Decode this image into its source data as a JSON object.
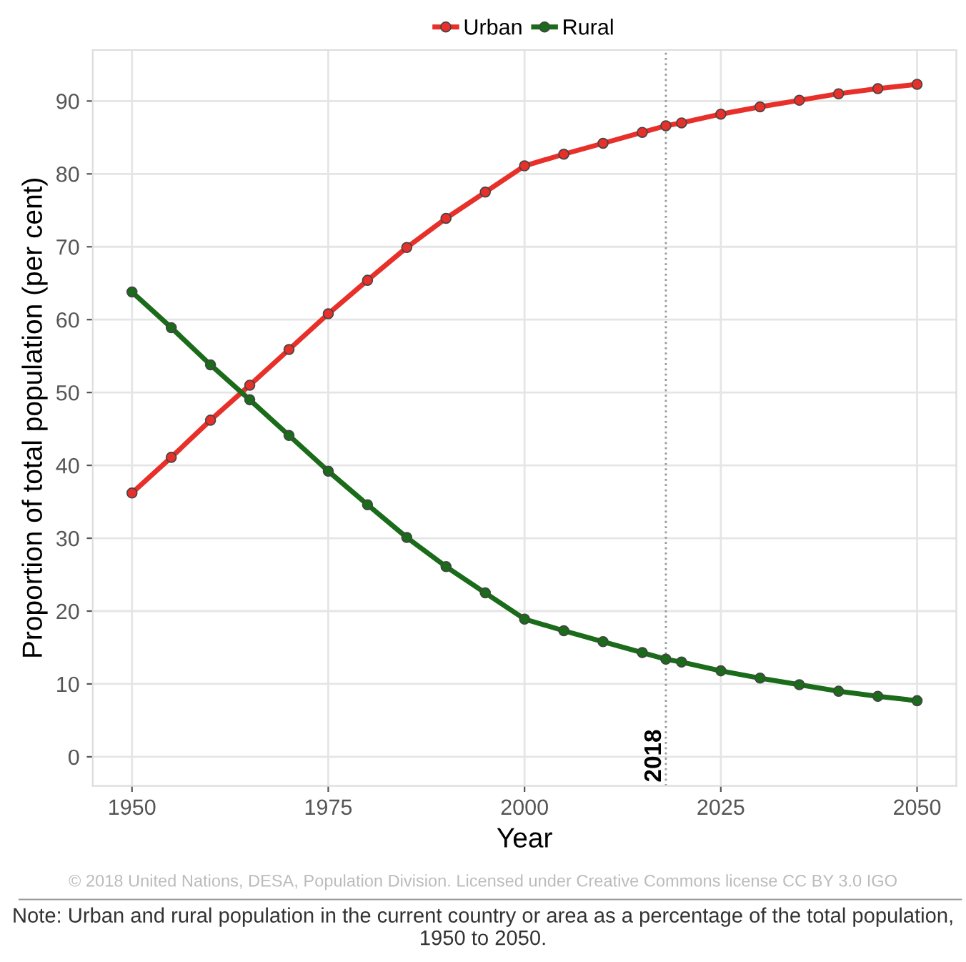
{
  "chart_data": {
    "type": "line",
    "xlabel": "Year",
    "ylabel": "Proportion of total population (per cent)",
    "x": [
      1950,
      1955,
      1960,
      1965,
      1970,
      1975,
      1980,
      1985,
      1990,
      1995,
      2000,
      2005,
      2010,
      2015,
      2018,
      2020,
      2025,
      2030,
      2035,
      2040,
      2045,
      2050
    ],
    "series": [
      {
        "name": "Urban",
        "color": "#e8302a",
        "values": [
          36.2,
          41.1,
          46.2,
          51.0,
          55.9,
          60.8,
          65.4,
          69.9,
          73.9,
          77.5,
          81.1,
          82.7,
          84.2,
          85.7,
          86.6,
          87.0,
          88.2,
          89.2,
          90.1,
          91.0,
          91.7,
          92.3
        ]
      },
      {
        "name": "Rural",
        "color": "#1a6b1a",
        "values": [
          63.8,
          58.9,
          53.8,
          49.0,
          44.1,
          39.2,
          34.6,
          30.1,
          26.1,
          22.5,
          18.9,
          17.3,
          15.8,
          14.3,
          13.4,
          13.0,
          11.8,
          10.8,
          9.9,
          9.0,
          8.3,
          7.7
        ]
      }
    ],
    "xlim": [
      1945,
      2055
    ],
    "xticks": [
      1950,
      1975,
      2000,
      2025,
      2050
    ],
    "ylim": [
      -4,
      97
    ],
    "yticks": [
      0,
      10,
      20,
      30,
      40,
      50,
      60,
      70,
      80,
      90
    ],
    "ref_lines": [
      {
        "axis": "x",
        "value": 2018,
        "label": "2018",
        "color": "#999999",
        "line_style": "dotted"
      }
    ],
    "annotations": [
      "© 2018 United Nations, DESA, Population Division. Licensed under Creative Commons license CC BY 3.0 IGO",
      "Note: Urban and rural population in the current country or area as a percentage of the total population, 1950 to 2050."
    ],
    "grid": true,
    "legend": "top",
    "marker": "circle",
    "line_style": "solid"
  }
}
